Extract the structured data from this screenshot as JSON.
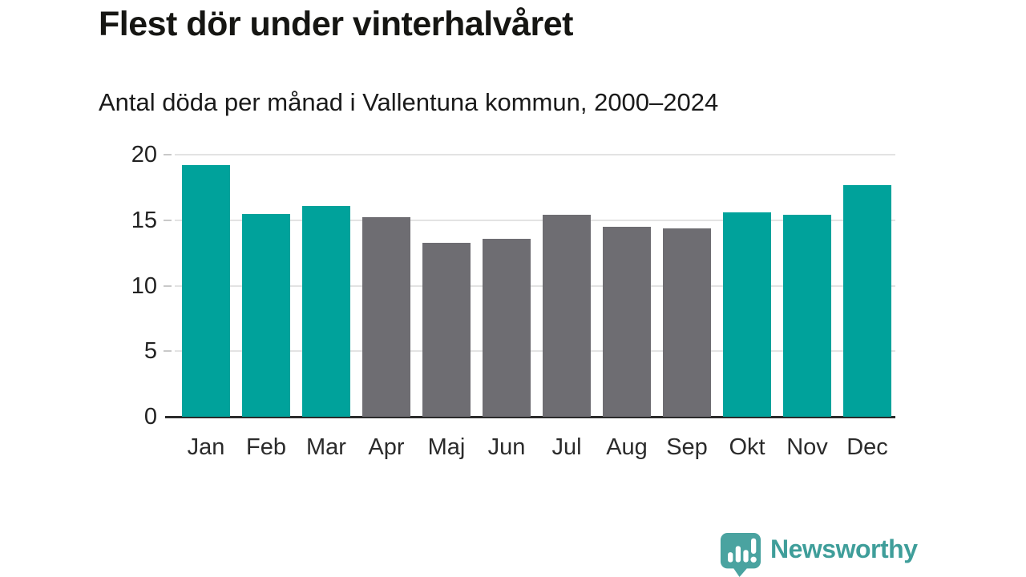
{
  "chart_data": {
    "type": "bar",
    "title": "Flest dör under vinterhalvåret",
    "subtitle": "Antal döda per månad i Vallentuna kommun, 2000–2024",
    "categories": [
      "Jan",
      "Feb",
      "Mar",
      "Apr",
      "Maj",
      "Jun",
      "Jul",
      "Aug",
      "Sep",
      "Okt",
      "Nov",
      "Dec"
    ],
    "values": [
      19.2,
      15.5,
      16.1,
      15.2,
      13.3,
      13.6,
      15.4,
      14.5,
      14.4,
      15.6,
      15.4,
      17.7
    ],
    "bar_colors": [
      "#00a29b",
      "#00a29b",
      "#00a29b",
      "#6e6d72",
      "#6e6d72",
      "#6e6d72",
      "#6e6d72",
      "#6e6d72",
      "#6e6d72",
      "#00a29b",
      "#00a29b",
      "#00a29b"
    ],
    "highlight_color": "#00a29b",
    "base_color": "#6e6d72",
    "xlabel": "",
    "ylabel": "",
    "ylim": [
      0,
      20
    ],
    "yticks": [
      0,
      5,
      10,
      15,
      20
    ],
    "grid": "horizontal-only",
    "legend": "none"
  },
  "footer": {
    "brand": "Newsworthy",
    "brand_color": "#3f9e9a",
    "logo_icon_color": "#4aa3a0",
    "logo_icon": "bar-chart-speech-bubble"
  }
}
